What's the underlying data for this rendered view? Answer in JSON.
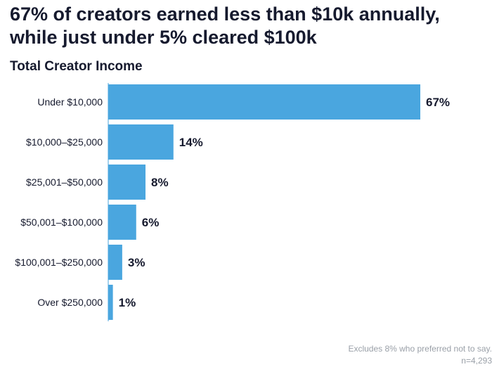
{
  "headline": {
    "line1": "67% of creators earned less than $10k annually,",
    "line2": "while just under 5% cleared $100k"
  },
  "chart_data": {
    "type": "bar",
    "orientation": "horizontal",
    "title": "Total Creator Income",
    "categories": [
      "Under $10,000",
      "$10,000–$25,000",
      "$25,001–$50,000",
      "$50,001–$100,000",
      "$100,001–$250,000",
      "Over $250,000"
    ],
    "values": [
      67,
      14,
      8,
      6,
      3,
      1
    ],
    "value_labels": [
      "67%",
      "14%",
      "8%",
      "6%",
      "3%",
      "1%"
    ],
    "value_unit": "%",
    "xlim": [
      0,
      67
    ],
    "grid": false,
    "bar_color": "#4aa6df"
  },
  "footnote": {
    "line1": "Excludes 8% who preferred not to say.",
    "line2": "n=4,293"
  }
}
